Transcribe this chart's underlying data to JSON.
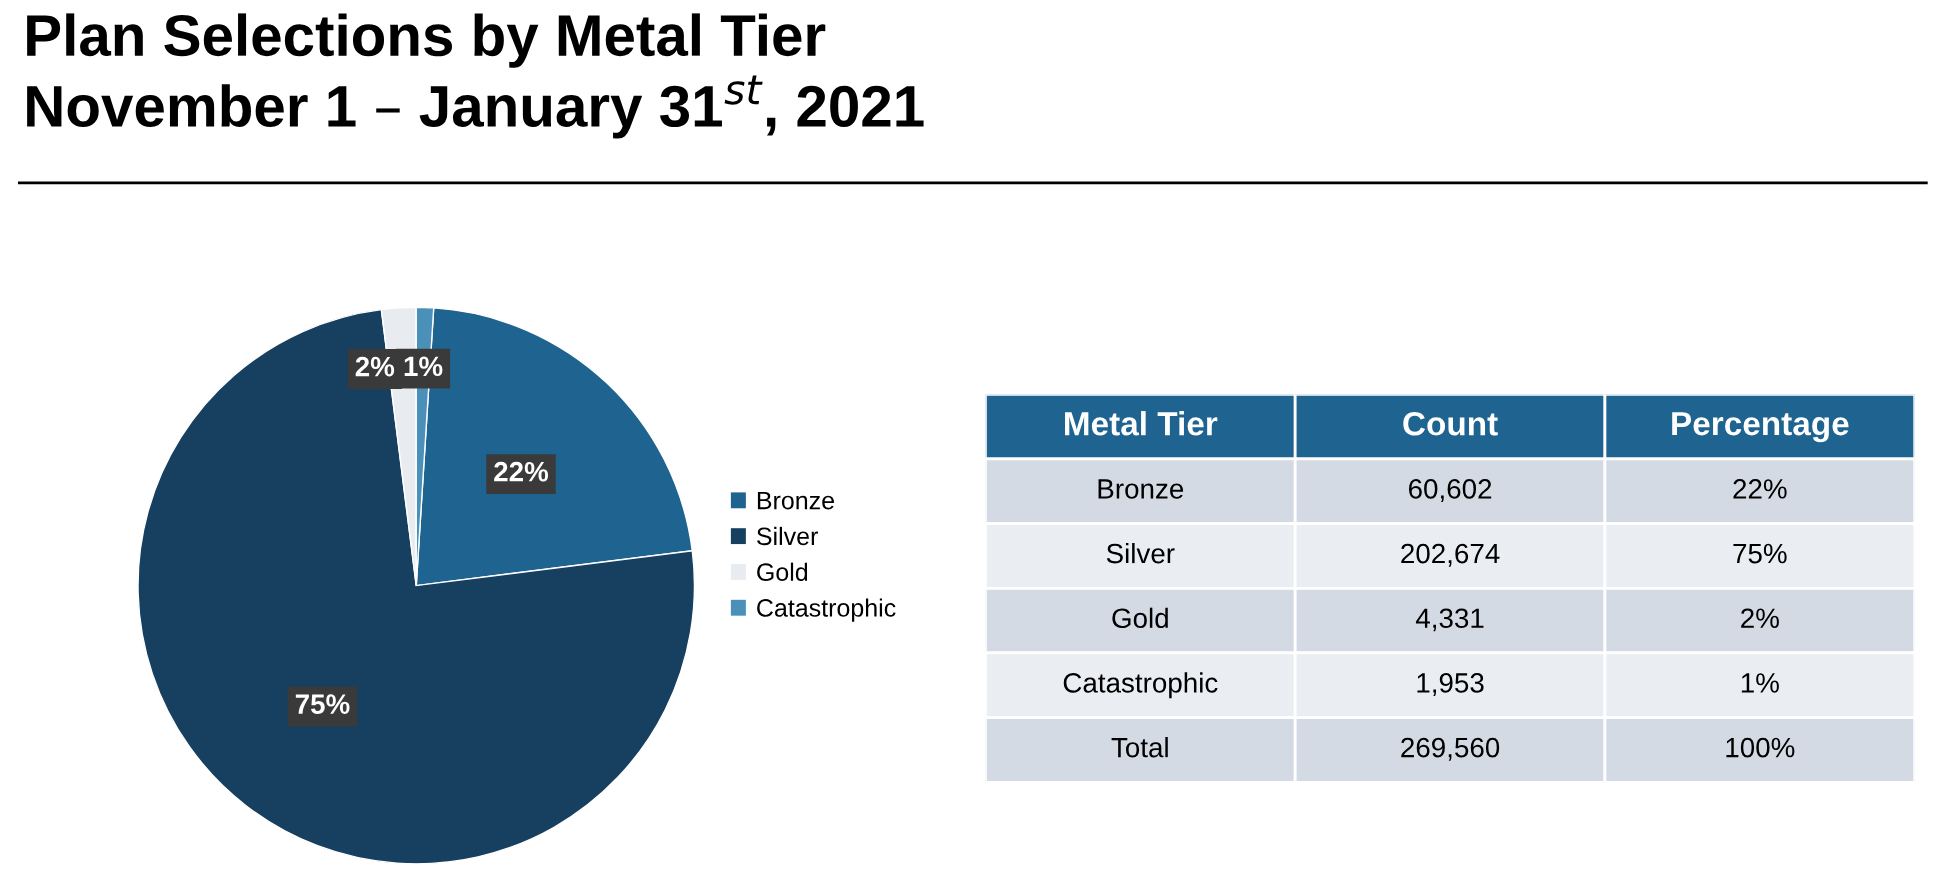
{
  "chart_data": {
    "type": "pie",
    "title": "Plan Selections by Metal Tier\nNovember 1 – January 31$^{st}$, 2021",
    "categories": [
      "Bronze",
      "Silver",
      "Gold",
      "Catastrophic"
    ],
    "values": [
      22,
      75,
      2,
      1
    ],
    "value_labels": [
      "22%",
      "75%",
      "2%",
      "1%"
    ],
    "colors": [
      "#1f6391",
      "#173f5f",
      "#e8ebef",
      "#4a90b8"
    ],
    "legend": "right",
    "annotations": [
      "Metal Tier",
      "Count",
      "Percentage",
      "60,602",
      "202,674",
      "4,331",
      "1,953",
      "Total",
      "269,560",
      "100%"
    ]
  }
}
